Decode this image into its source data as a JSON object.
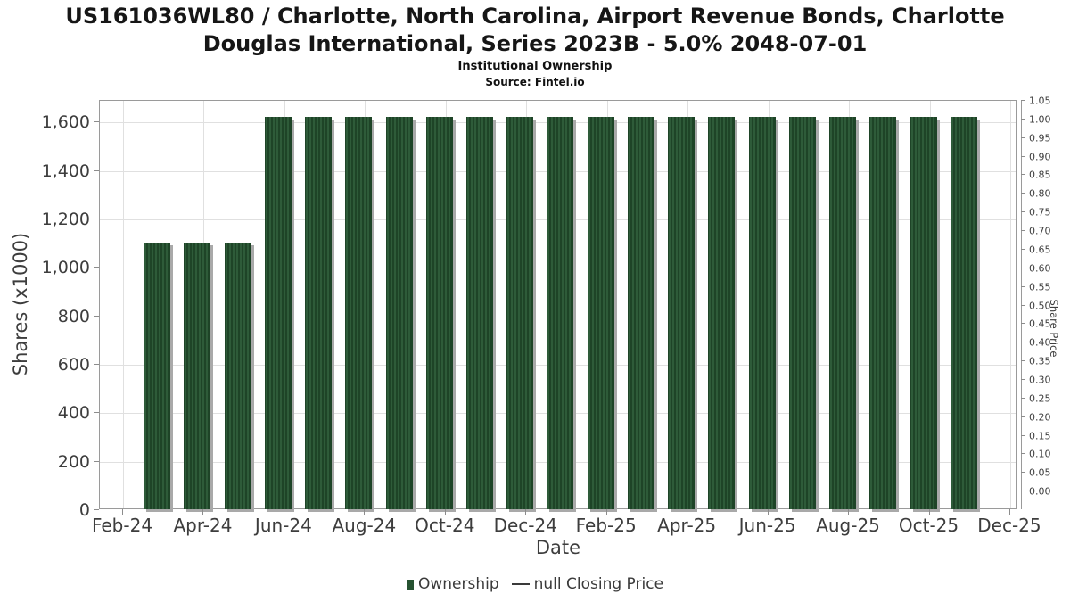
{
  "chart_data": {
    "type": "bar",
    "title": "US161036WL80 / Charlotte, North Carolina, Airport Revenue Bonds, Charlotte Douglas International, Series 2023B - 5.0% 2048-07-01",
    "subtitle": "Institutional Ownership",
    "source": "Source: Fintel.io",
    "xlabel": "Date",
    "ylabel": "Shares (x1000)",
    "ylabel_right": "Share Price",
    "grid": true,
    "legend_position": "bottom",
    "x_axis": {
      "tick_labels": [
        "Feb-24",
        "Apr-24",
        "Jun-24",
        "Aug-24",
        "Oct-24",
        "Dec-24",
        "Feb-25",
        "Apr-25",
        "Jun-25",
        "Aug-25",
        "Oct-25",
        "Dec-25"
      ]
    },
    "left_axis": {
      "tick_values": [
        0,
        200,
        400,
        600,
        800,
        1000,
        1200,
        1400,
        1600
      ],
      "tick_labels": [
        "0",
        "200",
        "400",
        "600",
        "800",
        "1,000",
        "1,200",
        "1,400",
        "1,600"
      ],
      "range": [
        0,
        1690
      ]
    },
    "right_axis": {
      "tick_labels": [
        "0.00",
        "0.05",
        "0.10",
        "0.15",
        "0.20",
        "0.25",
        "0.30",
        "0.35",
        "0.40",
        "0.45",
        "0.50",
        "0.55",
        "0.60",
        "0.65",
        "0.70",
        "0.75",
        "0.80",
        "0.85",
        "0.90",
        "0.95",
        "1.00",
        "1.05"
      ],
      "range": [
        -0.05,
        1.05
      ]
    },
    "categories": [
      "Mar-24",
      "Apr-24",
      "May-24",
      "Jun-24",
      "Jul-24",
      "Aug-24",
      "Sep-24",
      "Oct-24",
      "Nov-24",
      "Dec-24",
      "Jan-25",
      "Feb-25",
      "Mar-25",
      "Apr-25",
      "May-25",
      "Jun-25",
      "Jul-25",
      "Aug-25",
      "Sep-25",
      "Oct-25",
      "Nov-25"
    ],
    "series": [
      {
        "name": "Ownership",
        "type": "bar",
        "values": [
          1100,
          1100,
          1100,
          1620,
          1620,
          1620,
          1620,
          1620,
          1620,
          1620,
          1620,
          1620,
          1620,
          1620,
          1620,
          1620,
          1620,
          1620,
          1620,
          1620,
          1620
        ],
        "color": "#2e5b39",
        "hatch_color": "#1e4427",
        "shadow_color": "#a9a9a9"
      },
      {
        "name": "null Closing Price",
        "type": "line",
        "values": [],
        "color": "#3a3a3a"
      }
    ],
    "legend": [
      {
        "label": "Ownership",
        "marker": "square",
        "color": "#265231"
      },
      {
        "label": "null Closing Price",
        "marker": "line",
        "color": "#3a3a3a"
      }
    ]
  }
}
